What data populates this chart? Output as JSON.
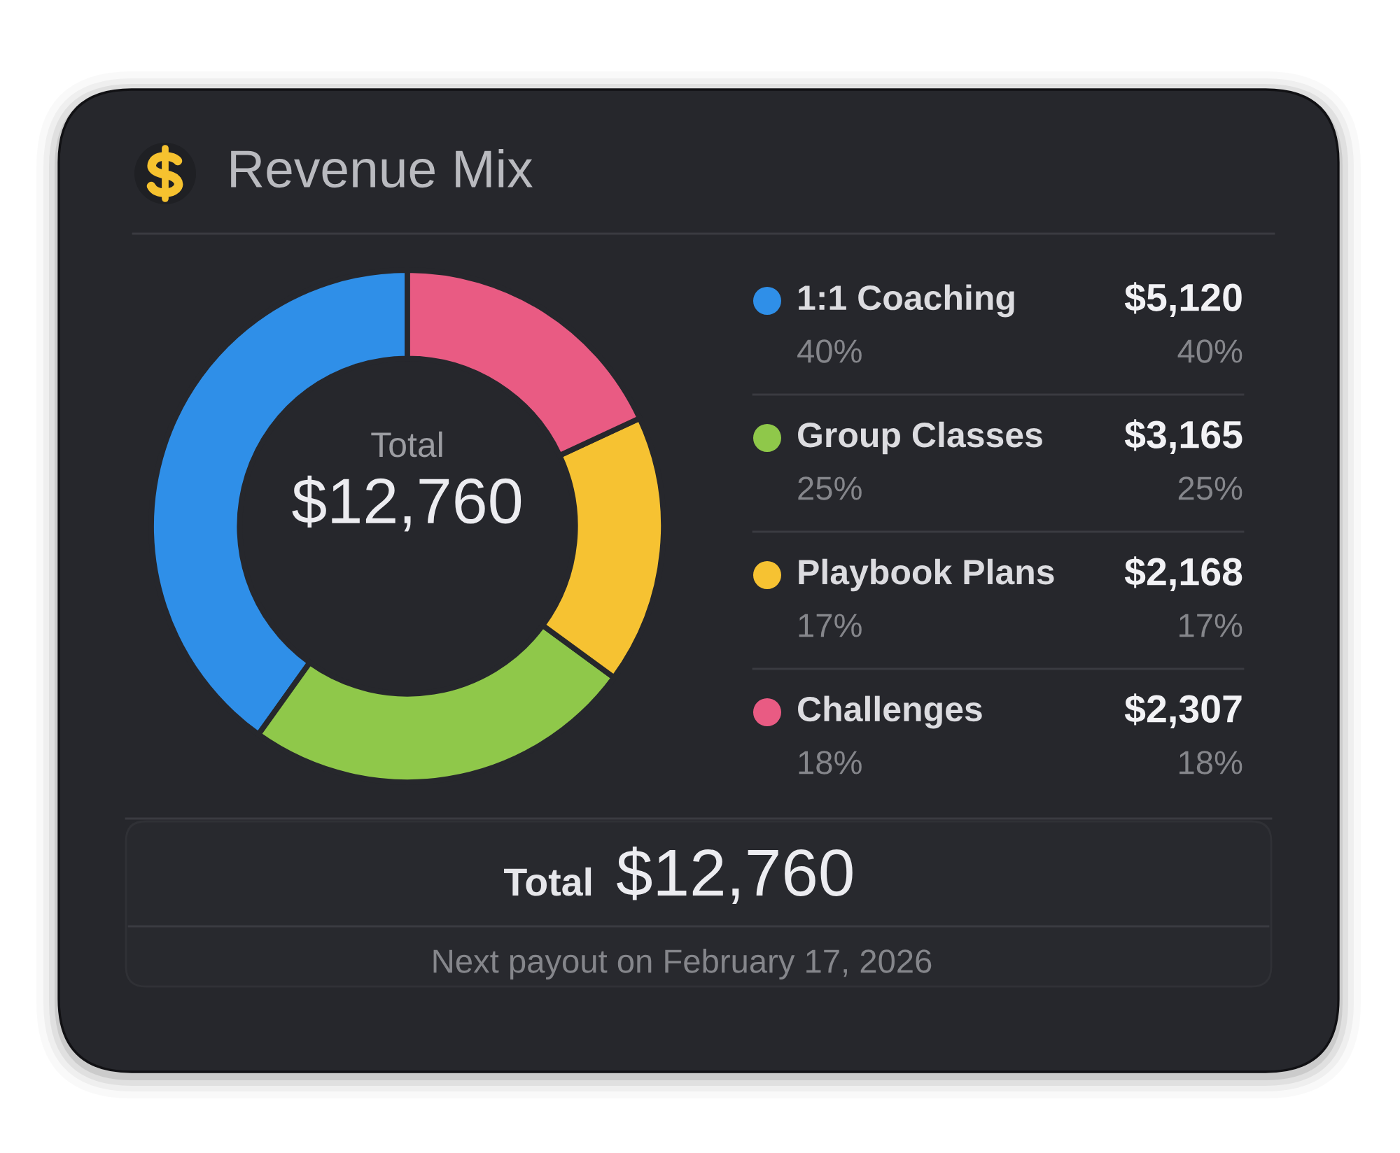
{
  "chart_data": {
    "type": "donut",
    "title": "Revenue Mix",
    "categories": [
      "1:1 Coaching",
      "Group Classes",
      "Playbook Plans",
      "Challenges"
    ],
    "values": [
      5120,
      3165,
      2168,
      2307
    ],
    "colors": [
      "#2f8fe8",
      "#8fc84a",
      "#f6c232",
      "#e95b83"
    ],
    "value_labels": [
      "$5,120",
      "$3,165",
      "$2,168",
      "$2,307"
    ],
    "legend": "right",
    "annotations": [
      "Total",
      "$12,760",
      "40%",
      "40%",
      "25%",
      "25%",
      "17%",
      "17%",
      "18%",
      "18%",
      "Total",
      "$12,760",
      "Next payout on February 17, 2026"
    ]
  }
}
